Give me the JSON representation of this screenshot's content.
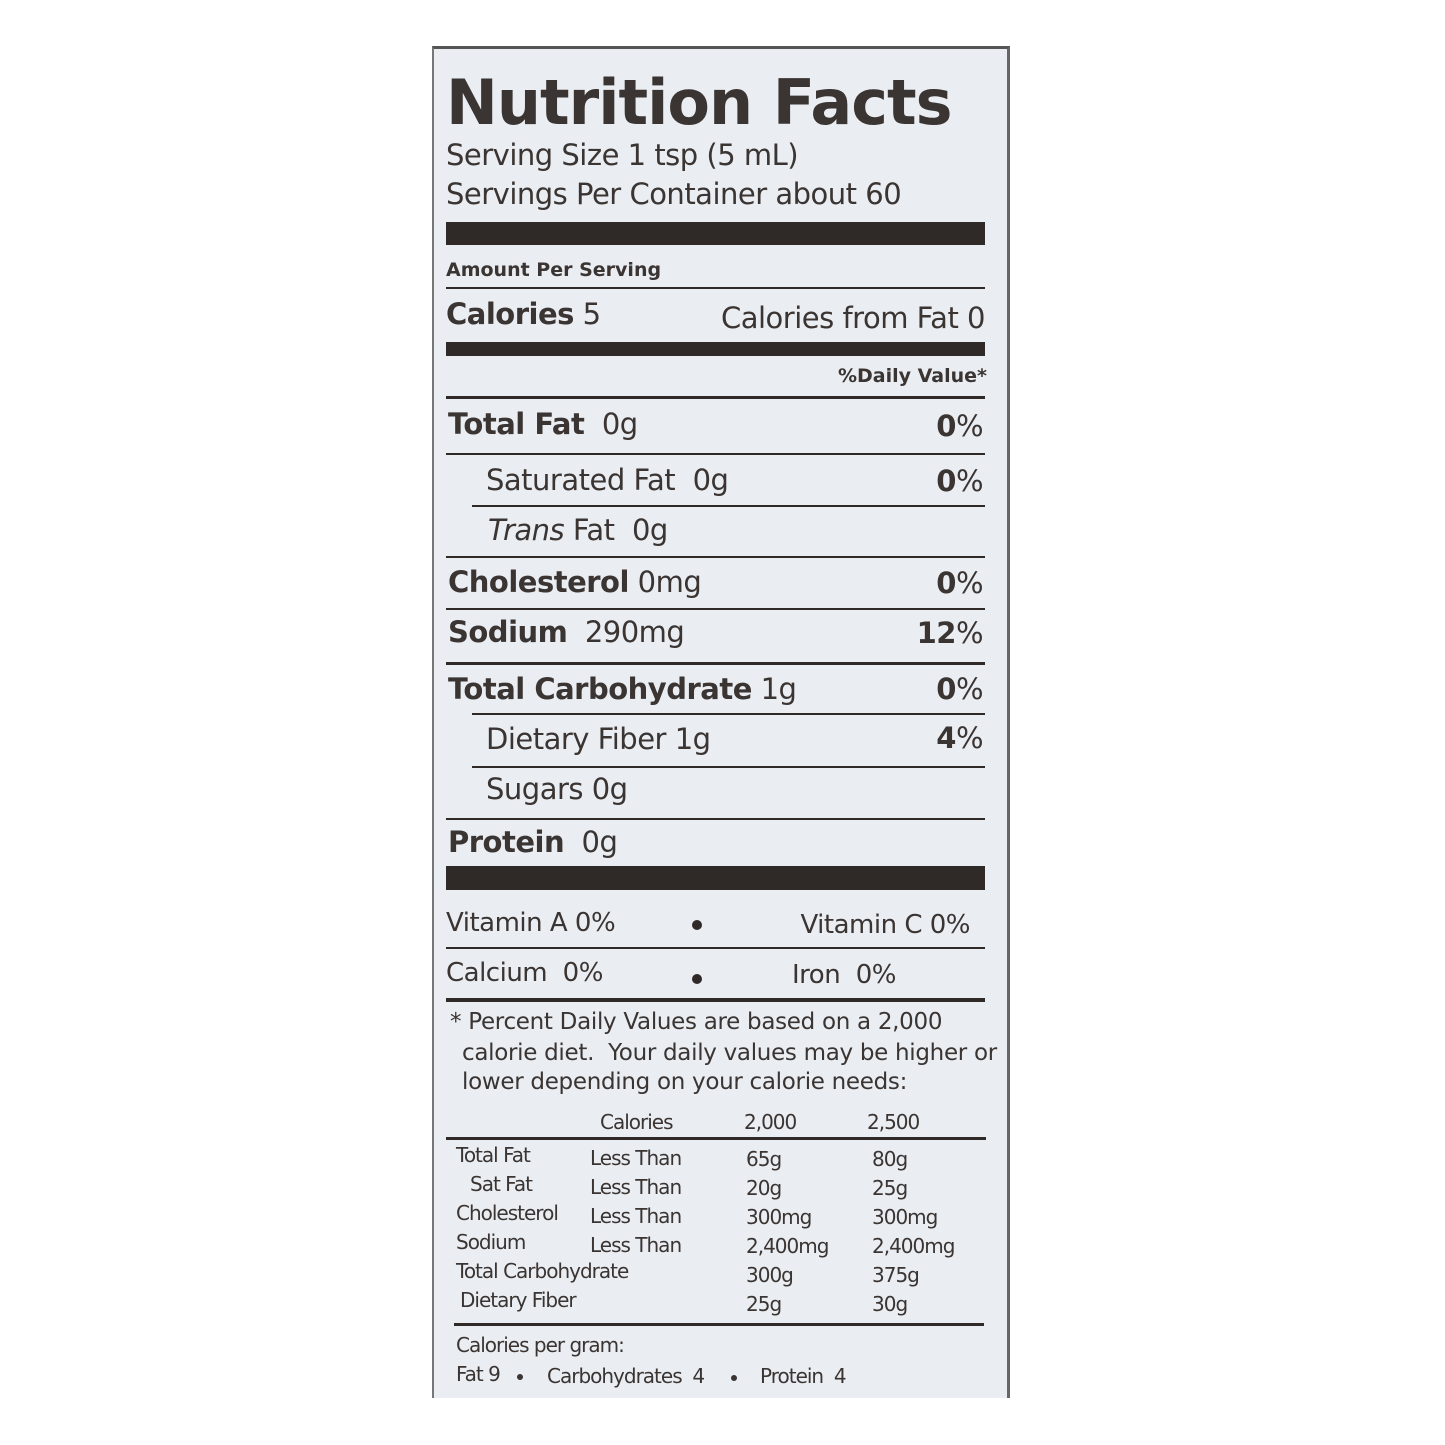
{
  "title": "Nutrition Facts",
  "serving_size": "Serving Size 1 tsp (5 mL)",
  "servings_per_container": "Servings Per Container about 60",
  "amount_per_serving": "Amount Per Serving",
  "calories": {
    "label": "Calories",
    "value": "5",
    "from_fat": "Calories from Fat 0"
  },
  "daily_value_header": "%Daily Value*",
  "nutrients": [
    {
      "name": "Total Fat",
      "amount": "0g",
      "dv": "0",
      "pct": "%"
    },
    {
      "name": "Saturated Fat",
      "amount": "0g",
      "dv": "0",
      "pct": "%"
    },
    {
      "name": "Trans",
      "name2": "Fat",
      "amount": "0g"
    },
    {
      "name": "Cholesterol",
      "amount": "0mg",
      "dv": "0",
      "pct": "%"
    },
    {
      "name": "Sodium",
      "amount": "290mg",
      "dv": "12",
      "pct": "%"
    },
    {
      "name": "Total Carbohydrate",
      "amount": "1g",
      "dv": "0",
      "pct": "%"
    },
    {
      "name": "Dietary Fiber",
      "amount": "1g",
      "dv": "4",
      "pct": "%"
    },
    {
      "name": "Sugars",
      "amount": "0g"
    },
    {
      "name": "Protein",
      "amount": "0g"
    }
  ],
  "vitamins": [
    {
      "left": "Vitamin A 0%",
      "right": "Vitamin C 0%"
    },
    {
      "left": "Calcium  0%",
      "right": "Iron  0%"
    }
  ],
  "footnote": [
    "* Percent Daily Values are based on a 2,000",
    "calorie diet.  Your daily values may be higher or",
    "lower depending on your calorie needs:"
  ],
  "dv_table": {
    "header": [
      "Calories",
      "2,000",
      "2,500"
    ],
    "rows": [
      [
        "Total Fat",
        "Less Than",
        "65g",
        "80g"
      ],
      [
        "Sat Fat",
        "Less Than",
        "20g",
        "25g"
      ],
      [
        "Cholesterol",
        "Less Than",
        "300mg",
        "300mg"
      ],
      [
        "Sodium",
        "Less Than",
        "2,400mg",
        "2,400mg"
      ],
      [
        "Total Carbohydrate",
        "",
        "300g",
        "375g"
      ],
      [
        "Dietary Fiber",
        "",
        "25g",
        "30g"
      ]
    ]
  },
  "calories_per_gram": {
    "title": "Calories per gram:",
    "fat": "Fat 9",
    "carbs": "Carbohydrates  4",
    "protein": "Protein  4"
  }
}
